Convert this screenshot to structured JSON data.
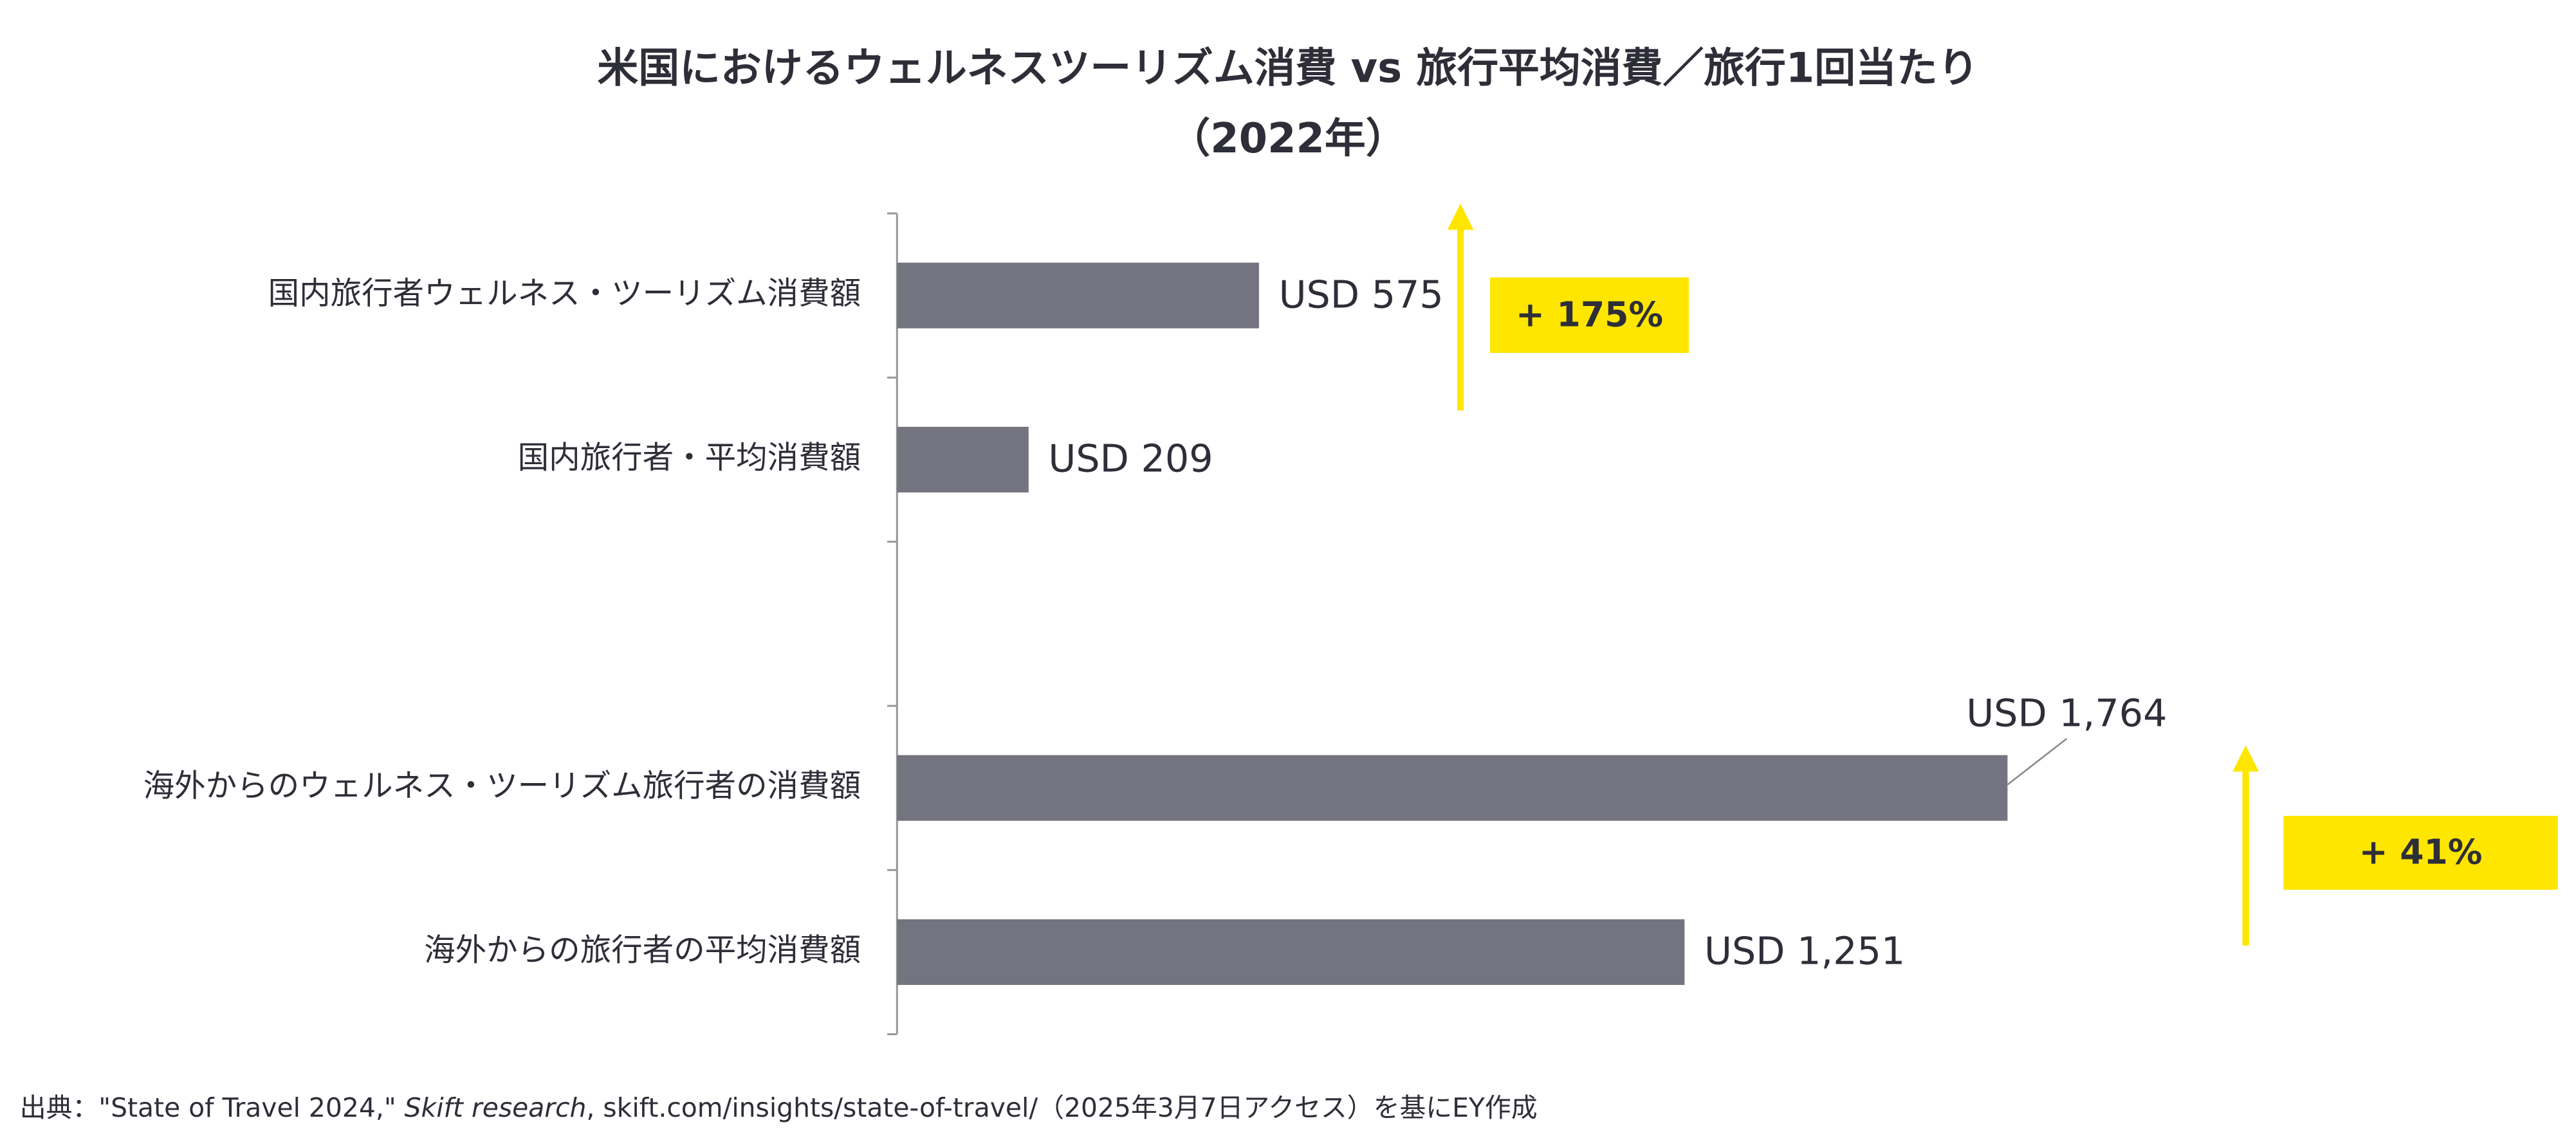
{
  "chart_data": {
    "type": "bar",
    "orientation": "horizontal",
    "title": [
      "米国におけるウェルネスツーリズム消費 vs 旅行平均消費／旅行1回当たり",
      "（2022年）"
    ],
    "categories": [
      "国内旅行者ウェルネス・ツーリズム消費額",
      "国内旅行者・平均消費額",
      null,
      "海外からのウェルネス・ツーリズム旅行者の消費額",
      "海外からの旅行者の平均消費額"
    ],
    "values": [
      575,
      209,
      null,
      1764,
      1251
    ],
    "value_labels": [
      "USD 575",
      "USD 209",
      null,
      "USD 1,764",
      "USD 1,251"
    ],
    "color": "#747480",
    "annotations": [
      "+ 175%",
      "+ 41%"
    ],
    "annotation_color": "#ffe600",
    "source": [
      "出典：\"State of Travel 2024,\" ",
      "Skift research",
      ", skift.com/insights/state-of-travel/（2025年3月7日アクセス）を基にEY作成"
    ]
  }
}
